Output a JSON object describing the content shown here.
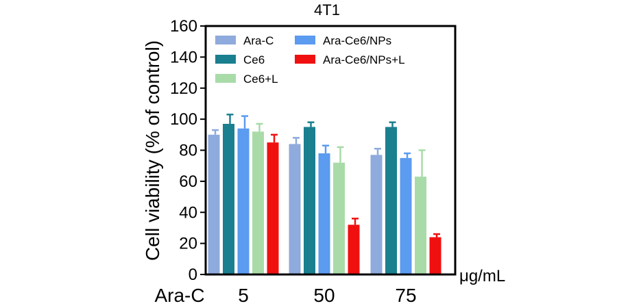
{
  "chart_data": {
    "type": "bar",
    "title": "4T1",
    "ylabel": "Cell viability (% of control)",
    "xlabel_prefix": "Ara-C",
    "x_unit": "μg/mL",
    "categories": [
      "5",
      "50",
      "75"
    ],
    "ylim": [
      0,
      160
    ],
    "yticks": [
      0,
      20,
      40,
      60,
      80,
      100,
      120,
      140,
      160
    ],
    "legend_position": "top-left",
    "series": [
      {
        "name": "Ara-C",
        "color": "#8FAADC",
        "values": [
          90,
          84,
          77
        ],
        "errors": [
          3,
          4,
          4
        ]
      },
      {
        "name": "Ce6",
        "color": "#1A7F8E",
        "values": [
          97,
          95,
          95
        ],
        "errors": [
          6,
          3,
          3
        ]
      },
      {
        "name": "Ara-Ce6/NPs",
        "color": "#5B9BF0",
        "values": [
          94,
          78,
          75
        ],
        "errors": [
          8,
          5,
          3
        ]
      },
      {
        "name": "Ce6+L",
        "color": "#A8DBA8",
        "values": [
          92,
          72,
          63
        ],
        "errors": [
          5,
          10,
          17
        ]
      },
      {
        "name": "Ara-Ce6/NPs+L",
        "color": "#F01010",
        "values": [
          85,
          32,
          24
        ],
        "errors": [
          5,
          4,
          2
        ]
      }
    ]
  }
}
